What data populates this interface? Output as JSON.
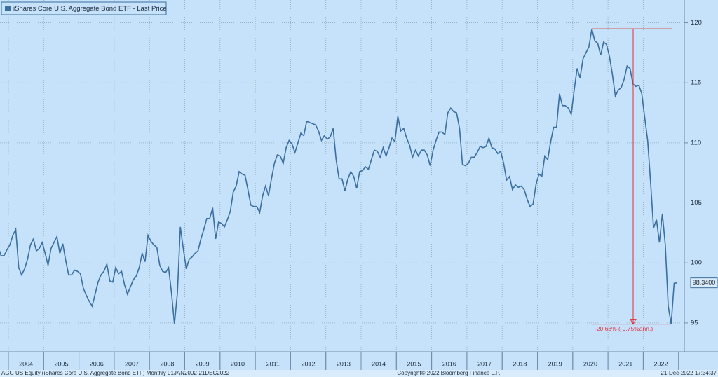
{
  "chart_data": {
    "type": "line",
    "series": [
      {
        "name": "iShares Core U.S. Aggregate Bond ETF - Last Price",
        "color": "#3a6f9f",
        "values": [
          101.4,
          100.6,
          100.6,
          101.1,
          101.5,
          102.3,
          102.8,
          99.6,
          99.0,
          99.5,
          100.3,
          101.5,
          102.0,
          101.0,
          101.2,
          101.7,
          100.8,
          99.8,
          101.2,
          101.7,
          102.2,
          100.8,
          101.6,
          100.2,
          99.0,
          99.0,
          99.4,
          99.3,
          99.1,
          97.9,
          97.3,
          96.8,
          96.4,
          97.4,
          98.4,
          99.0,
          99.3,
          99.9,
          98.5,
          98.4,
          99.6,
          99.1,
          99.3,
          98.2,
          97.4,
          98.0,
          98.6,
          98.9,
          99.6,
          100.8,
          100.1,
          102.3,
          101.8,
          101.5,
          101.3,
          99.8,
          99.3,
          99.2,
          99.6,
          97.5,
          94.9,
          97.5,
          103.0,
          101.2,
          99.5,
          100.3,
          100.5,
          100.8,
          101.0,
          102.0,
          102.8,
          103.7,
          103.7,
          104.6,
          102.0,
          103.4,
          103.3,
          103.0,
          103.6,
          104.3,
          105.9,
          106.4,
          107.6,
          107.4,
          107.3,
          106.1,
          104.8,
          104.7,
          104.7,
          104.2,
          105.6,
          106.4,
          105.6,
          107.0,
          108.3,
          109.0,
          108.9,
          108.3,
          109.6,
          110.2,
          109.9,
          109.2,
          110.0,
          110.8,
          110.6,
          111.8,
          111.7,
          111.6,
          111.5,
          111.0,
          110.2,
          110.6,
          110.3,
          110.5,
          111.2,
          108.6,
          107.0,
          107.0,
          106.0,
          107.0,
          107.6,
          107.2,
          106.2,
          107.6,
          107.7,
          108.0,
          107.8,
          108.6,
          109.4,
          109.3,
          108.8,
          109.6,
          108.9,
          109.6,
          110.4,
          110.1,
          112.2,
          111.0,
          111.2,
          110.4,
          109.8,
          108.8,
          109.4,
          108.9,
          109.4,
          109.4,
          109.0,
          108.1,
          109.4,
          110.2,
          110.9,
          110.9,
          110.7,
          112.5,
          112.9,
          112.6,
          112.5,
          111.2,
          108.2,
          108.1,
          108.3,
          108.8,
          108.8,
          109.2,
          109.7,
          109.6,
          109.7,
          110.4,
          109.6,
          109.5,
          109.1,
          109.3,
          108.3,
          106.9,
          107.2,
          106.1,
          106.5,
          106.3,
          106.4,
          106.1,
          105.3,
          104.7,
          104.9,
          106.5,
          107.4,
          107.2,
          108.9,
          108.6,
          110.1,
          111.3,
          111.3,
          114.1,
          113.1,
          113.1,
          112.9,
          112.4,
          114.4,
          116.2,
          115.4,
          117.0,
          117.5,
          118.0,
          119.5,
          118.5,
          118.3,
          117.3,
          118.4,
          118.2,
          117.2,
          115.7,
          113.9,
          114.4,
          114.6,
          115.3,
          116.4,
          116.2,
          114.9,
          114.7,
          114.8,
          114.1,
          112.1,
          110.2,
          106.7,
          102.9,
          103.6,
          101.7,
          104.1,
          101.5,
          96.4,
          94.9,
          98.3,
          98.34
        ]
      }
    ],
    "categories": [
      null,
      null,
      null,
      null,
      null,
      null,
      null,
      null,
      null,
      "2004",
      null,
      null,
      null,
      null,
      null,
      null,
      null,
      null,
      null,
      null,
      null,
      "2005",
      null,
      null,
      null,
      null,
      null,
      null,
      null,
      null,
      null,
      null,
      null,
      "2006",
      null,
      null,
      null,
      null,
      null,
      null,
      null,
      null,
      null,
      null,
      null,
      "2007",
      null,
      null,
      null,
      null,
      null,
      null,
      null,
      null,
      null,
      null,
      null,
      "2008",
      null,
      null,
      null,
      null,
      null,
      null,
      null,
      null,
      null,
      null,
      null,
      "2009",
      null,
      null,
      null,
      null,
      null,
      null,
      null,
      null,
      null,
      null,
      null,
      "2010",
      null,
      null,
      null,
      null,
      null,
      null,
      null,
      null,
      null,
      null,
      null,
      "2011",
      null,
      null,
      null,
      null,
      null,
      null,
      null,
      null,
      null,
      null,
      null,
      "2012",
      null,
      null,
      null,
      null,
      null,
      null,
      null,
      null,
      null,
      null,
      null,
      "2013",
      null,
      null,
      null,
      null,
      null,
      null,
      null,
      null,
      null,
      null,
      null,
      "2014",
      null,
      null,
      null,
      null,
      null,
      null,
      null,
      null,
      null,
      null,
      null,
      "2015",
      null,
      null,
      null,
      null,
      null,
      null,
      null,
      null,
      null,
      null,
      null,
      "2016",
      null,
      null,
      null,
      null,
      null,
      null,
      null,
      null,
      null,
      null,
      null,
      "2017",
      null,
      null,
      null,
      null,
      null,
      null,
      null,
      null,
      null,
      null,
      null,
      "2018",
      null,
      null,
      null,
      null,
      null,
      null,
      null,
      null,
      null,
      null,
      null,
      "2019",
      null,
      null,
      null,
      null,
      null,
      null,
      null,
      null,
      null,
      null,
      null,
      "2020",
      null,
      null,
      null,
      null,
      null,
      null,
      null,
      null,
      null,
      null,
      null,
      "2021",
      null,
      null,
      null,
      null,
      null,
      null,
      null,
      null,
      null,
      null,
      null,
      "2022",
      null,
      null,
      null,
      null,
      null,
      null
    ],
    "ylim": [
      92.6,
      121.9
    ],
    "yticks": [
      95,
      100,
      105,
      110,
      115,
      120
    ],
    "grid": true,
    "last_label": "98.3400",
    "annotation": "-20.63% (-9.75%ann.)",
    "footer": {
      "left": "AGG US Equity (iShares Core U.S. Aggregate Bond ETF)  Monthly 01JAN2002-21DEC2022",
      "center": "Copyright© 2022 Bloomberg Finance L.P.",
      "right": "21-Dec-2022 17:34:37"
    }
  }
}
